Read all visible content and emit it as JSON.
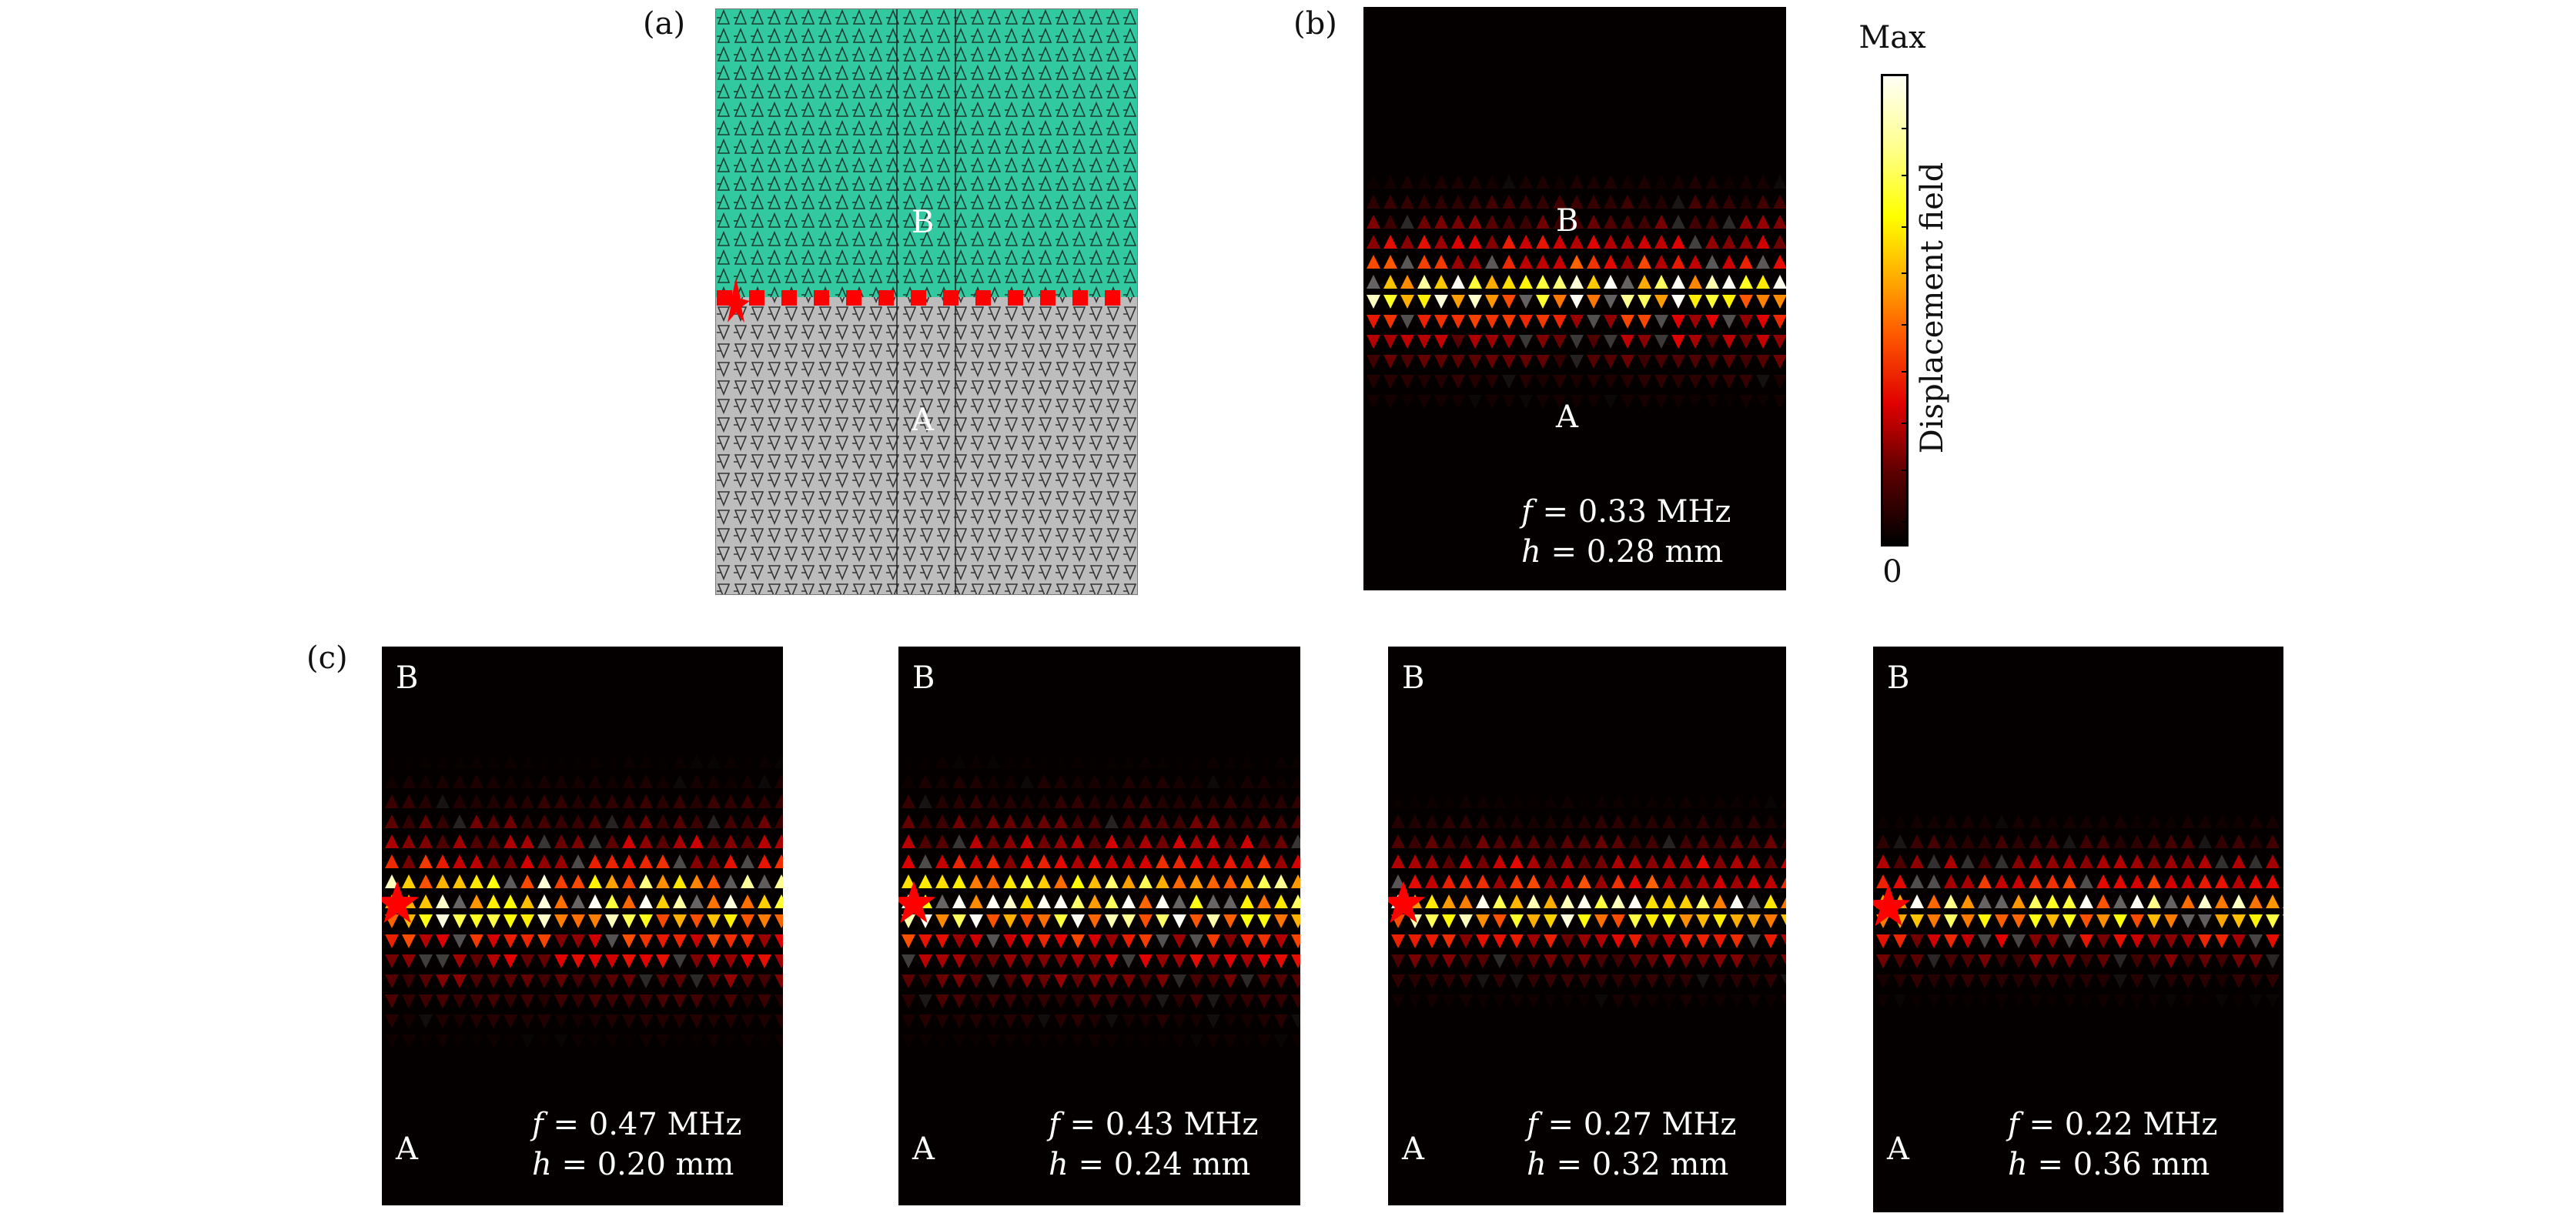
{
  "figure": {
    "panel_labels": {
      "a": "(a)",
      "b": "(b)",
      "c": "(c)"
    },
    "region_labels": {
      "top": "B",
      "bottom": "A"
    },
    "colorbar": {
      "title": "Displacement field",
      "max_label": "Max",
      "min_label": "0",
      "colors": [
        "#000000",
        "#5a0000",
        "#e00000",
        "#ff5a00",
        "#ffa000",
        "#ffff00",
        "#fffff5"
      ]
    },
    "panel_a": {
      "top_color": "#33c9a0",
      "bottom_color": "#bdbdbd",
      "source_color": "#ff0000"
    },
    "panel_b": {
      "f_label": "f",
      "f_value": "= 0.33 MHz",
      "h_label": "h",
      "h_value": "= 0.28 mm"
    },
    "panels_c": [
      {
        "f_label": "f",
        "f_value": "= 0.47 MHz",
        "h_label": "h",
        "h_value": "= 0.20 mm"
      },
      {
        "f_label": "f",
        "f_value": "= 0.43 MHz",
        "h_label": "h",
        "h_value": "= 0.24 mm"
      },
      {
        "f_label": "f",
        "f_value": "= 0.27 MHz",
        "h_label": "h",
        "h_value": "= 0.32 mm"
      },
      {
        "f_label": "f",
        "f_value": "= 0.22 MHz",
        "h_label": "h",
        "h_value": "= 0.36 mm"
      }
    ]
  }
}
